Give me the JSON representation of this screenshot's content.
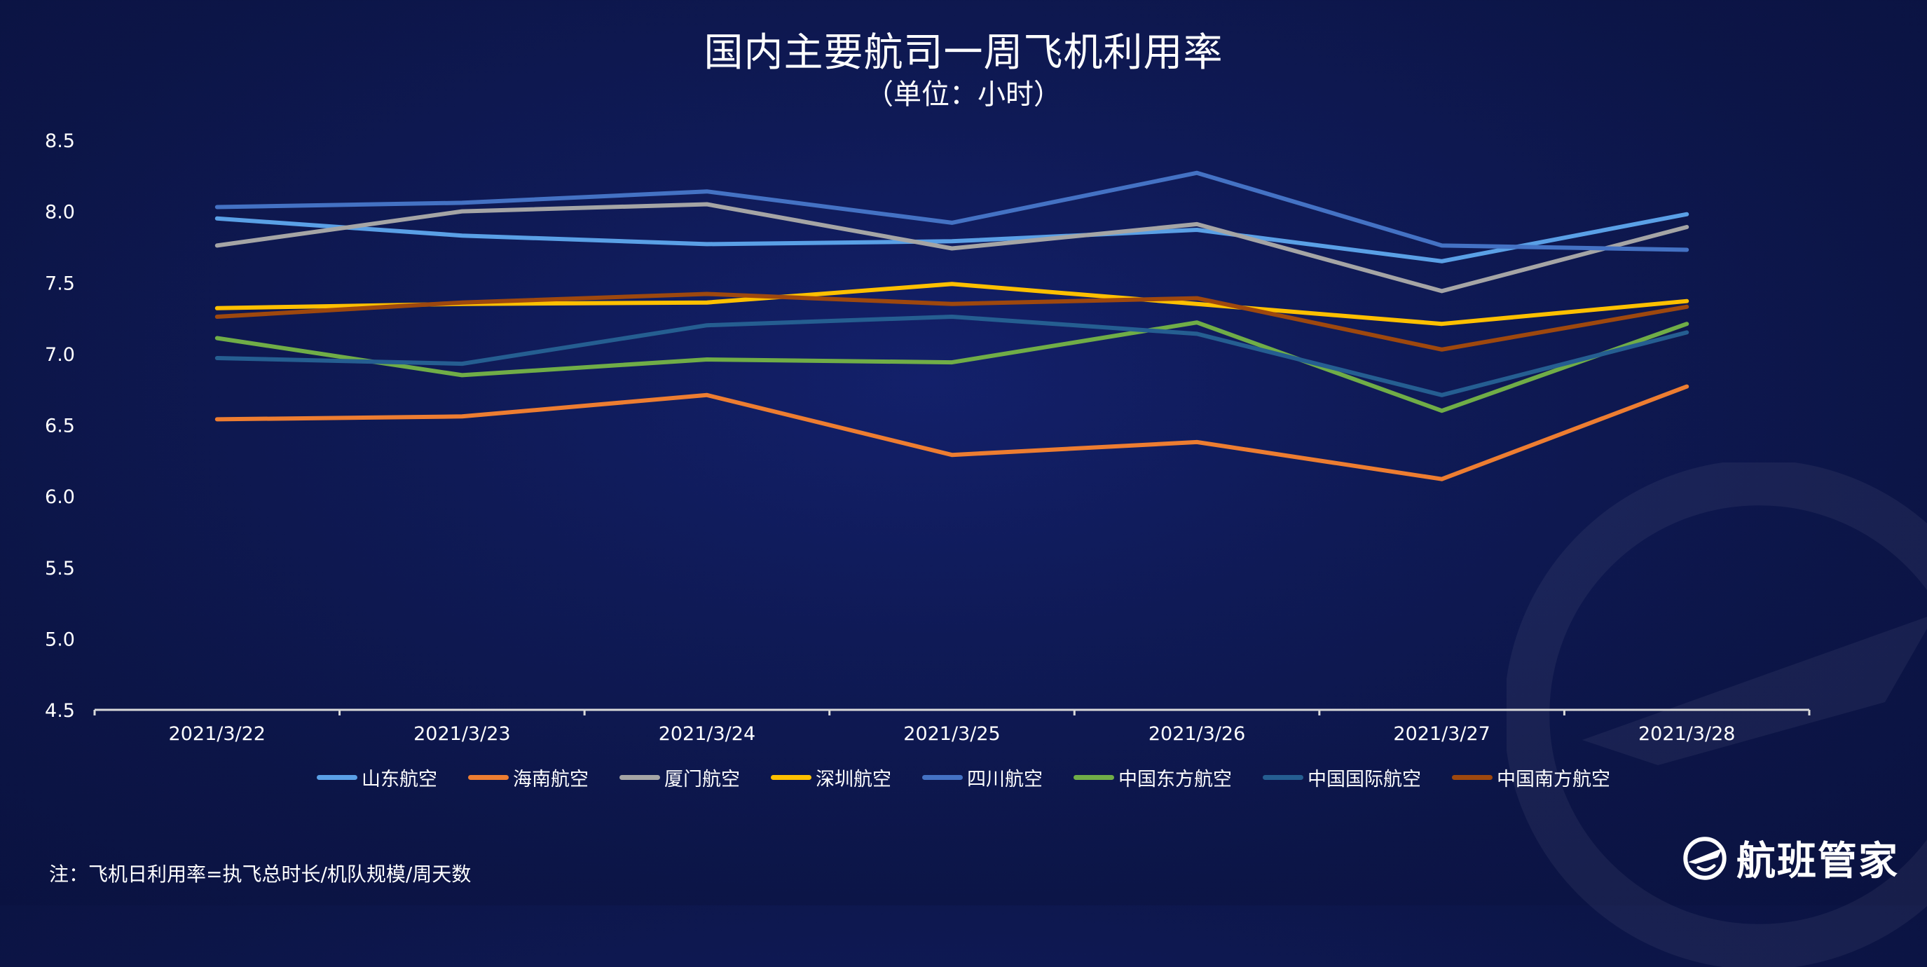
{
  "title": "国内主要航司一周飞机利用率",
  "subtitle": "（单位：小时）",
  "note": "注：飞机日利用率=执飞总时长/机队规模/周天数",
  "brand": {
    "name": "航班管家",
    "icon": "airplane-globe-logo-icon"
  },
  "chart_data": {
    "type": "line",
    "title": "国内主要航司一周飞机利用率",
    "subtitle": "（单位：小时）",
    "x": [
      "2021/3/22",
      "2021/3/23",
      "2021/3/24",
      "2021/3/25",
      "2021/3/26",
      "2021/3/27",
      "2021/3/28"
    ],
    "ylim": [
      4.5,
      8.5
    ],
    "yticks": [
      "8.5",
      "8.0",
      "7.5",
      "7.0",
      "6.5",
      "6.0",
      "5.5",
      "5.0",
      "4.5"
    ],
    "grid": false,
    "legend": "bottom",
    "series": [
      {
        "name": "山东航空",
        "color": "#5aa0e6",
        "values": [
          7.95,
          7.83,
          7.77,
          7.79,
          7.87,
          7.65,
          7.98
        ]
      },
      {
        "name": "海南航空",
        "color": "#ed7d31",
        "values": [
          6.54,
          6.56,
          6.71,
          6.29,
          6.38,
          6.12,
          6.77
        ]
      },
      {
        "name": "厦门航空",
        "color": "#a5a5a5",
        "values": [
          7.76,
          8.0,
          8.05,
          7.74,
          7.91,
          7.44,
          7.89
        ]
      },
      {
        "name": "深圳航空",
        "color": "#ffc000",
        "values": [
          7.32,
          7.35,
          7.36,
          7.49,
          7.35,
          7.21,
          7.37
        ]
      },
      {
        "name": "四川航空",
        "color": "#4472c4",
        "values": [
          8.03,
          8.06,
          8.14,
          7.92,
          8.27,
          7.76,
          7.73
        ]
      },
      {
        "name": "中国东方航空",
        "color": "#70ad47",
        "values": [
          7.11,
          6.85,
          6.96,
          6.94,
          7.22,
          6.6,
          7.21
        ]
      },
      {
        "name": "中国国际航空",
        "color": "#255e91",
        "values": [
          6.97,
          6.93,
          7.2,
          7.26,
          7.14,
          6.71,
          7.15
        ]
      },
      {
        "name": "中国南方航空",
        "color": "#9e480e",
        "values": [
          7.26,
          7.36,
          7.42,
          7.35,
          7.39,
          7.03,
          7.33
        ]
      }
    ]
  }
}
